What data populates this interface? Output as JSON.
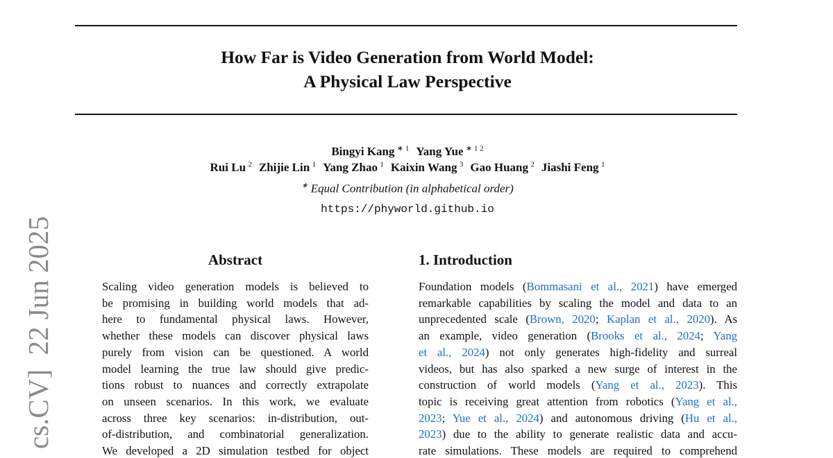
{
  "side_stamp": "cs.CV]  22 Jun 2025",
  "header": {
    "title_lines": [
      "How Far is Video Generation from World Model:",
      "A Physical Law Perspective"
    ],
    "author_lines": [
      [
        {
          "name": "Bingyi Kang",
          "sup": "∗ 1"
        },
        {
          "name": "Yang Yue",
          "sup": "∗ 1 2"
        }
      ],
      [
        {
          "name": "Rui Lu",
          "sup": "2"
        },
        {
          "name": "Zhijie Lin",
          "sup": "1"
        },
        {
          "name": "Yang Zhao",
          "sup": "1"
        },
        {
          "name": "Kaixin Wang",
          "sup": "3"
        },
        {
          "name": "Gao Huang",
          "sup": "2"
        },
        {
          "name": "Jiashi Feng",
          "sup": "1"
        }
      ]
    ],
    "note": {
      "sup": "∗",
      "text": "Equal Contribution (in alphabetical order)"
    },
    "url": "https://phyworld.github.io"
  },
  "abstract": {
    "heading": "Abstract",
    "lines": [
      "Scaling video generation models is believed to",
      "be promising in building world models that ad-",
      "here to fundamental physical laws.  However,",
      "whether these models can discover physical laws",
      "purely from vision can be questioned.  A world",
      "model learning the true law should give predic-",
      "tions robust to nuances and correctly extrapolate",
      "on unseen scenarios.  In this work, we evaluate",
      "across three key scenarios: in-distribution, out-",
      "of-distribution, and combinatorial generalization.",
      "We developed a 2D simulation testbed for object"
    ]
  },
  "intro": {
    "heading": "1. Introduction",
    "lines": [
      [
        "Foundation models (",
        {
          "cite": "Bommasani et al., 2021"
        },
        ") have emerged"
      ],
      [
        "remarkable capabilities by scaling the model and data to an"
      ],
      [
        "unprecedented scale (",
        {
          "cite": "Brown, 2020"
        },
        "; ",
        {
          "cite": "Kaplan et al., 2020"
        },
        ").  As"
      ],
      [
        "an example, video generation (",
        {
          "cite": "Brooks et al., 2024"
        },
        "; ",
        {
          "cite": "Yang"
        }
      ],
      [
        {
          "cite": "et al., 2024"
        },
        ") not only generates high-fidelity and surreal"
      ],
      [
        "videos, but has also sparked a new surge of interest in the"
      ],
      [
        "construction of world models (",
        {
          "cite": "Yang et al., 2023"
        },
        ").  This"
      ],
      [
        "topic is receiving great attention from robotics (",
        {
          "cite": "Yang et al.,"
        }
      ],
      [
        {
          "cite": "2023"
        },
        "; ",
        {
          "cite": "Yue et al., 2024"
        },
        ") and autonomous driving (",
        {
          "cite": "Hu et al.,"
        }
      ],
      [
        {
          "cite": "2023"
        },
        ") due to the ability to generate realistic data and accu-"
      ],
      [
        "rate simulations. These models are required to comprehend"
      ]
    ]
  }
}
